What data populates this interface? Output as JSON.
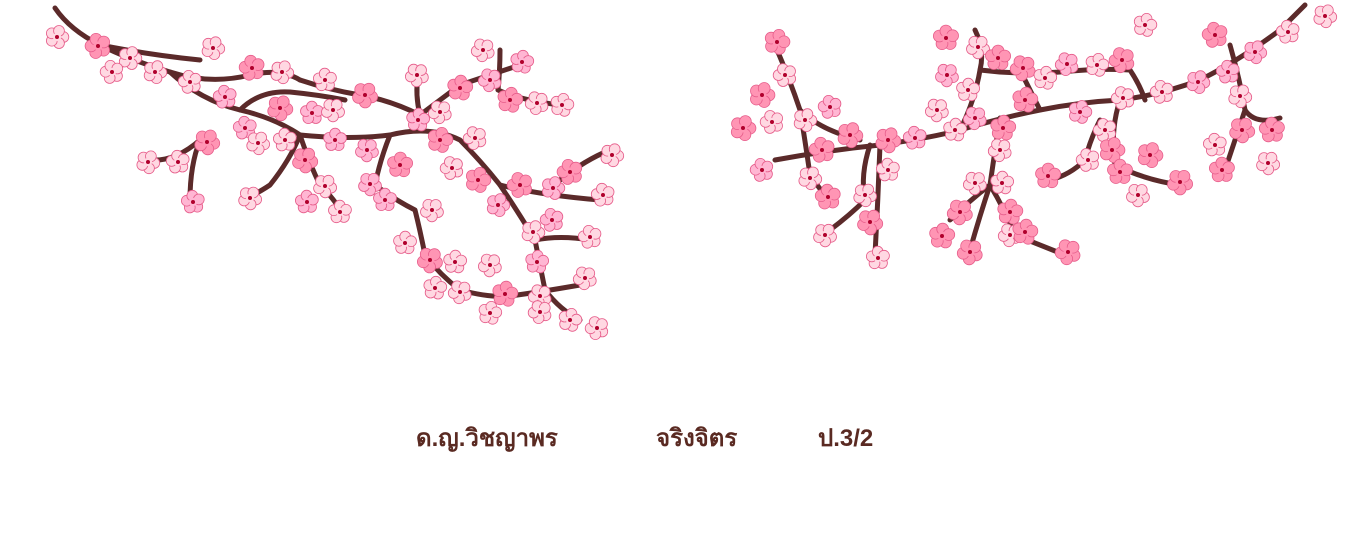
{
  "caption": {
    "name": "ด.ญ.วิชญาพร",
    "surname": "จริงจิตร",
    "class": "ป.3/2"
  },
  "colors": {
    "branch": "#5b2a2a",
    "petal_light": "#ffd8e2",
    "petal_mid": "#ffb6d3",
    "petal_deep": "#ff95b4",
    "center": "#b0002c",
    "text": "#5a2a22"
  }
}
